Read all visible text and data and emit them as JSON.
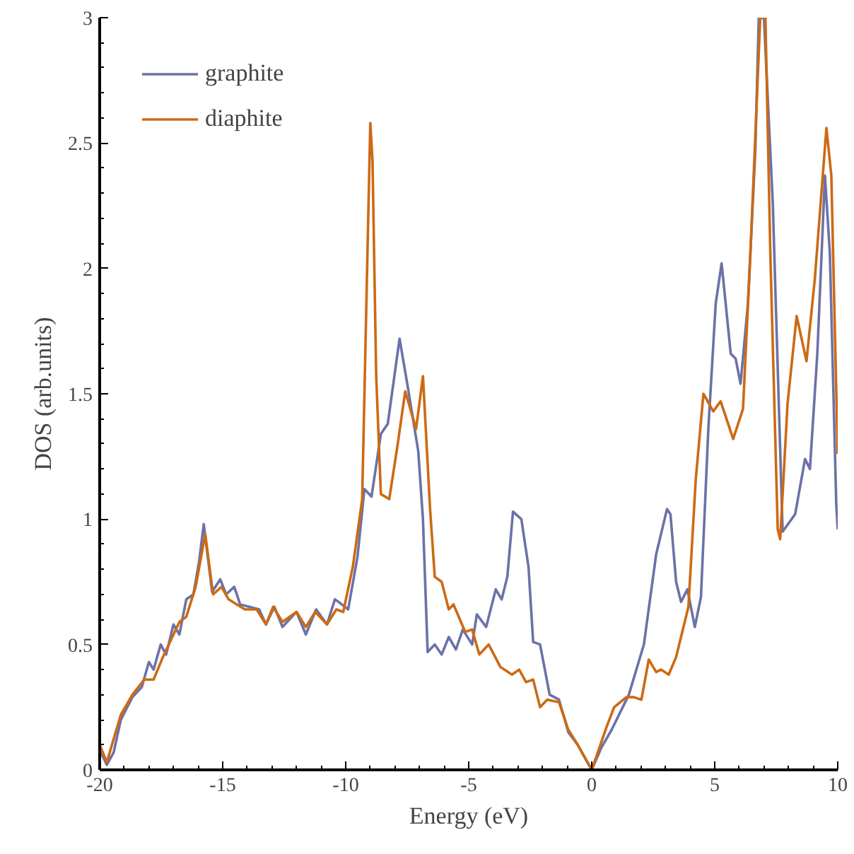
{
  "chart_data": {
    "type": "line",
    "xlabel": "Energy (eV)",
    "ylabel": "DOS (arb.units)",
    "xlim": [
      -20,
      10
    ],
    "ylim": [
      0,
      3
    ],
    "xticks": [
      -20,
      -15,
      -10,
      -5,
      0,
      5,
      10
    ],
    "yticks": [
      0,
      0.5,
      1,
      1.5,
      2,
      2.5,
      3
    ],
    "grid": false,
    "legend": "top left",
    "line_style": "solid",
    "series": [
      {
        "name": "graphite",
        "color": "#6b72a8",
        "x": [
          -20,
          -19.71,
          -19.43,
          -19.14,
          -18.67,
          -18.29,
          -18.0,
          -17.81,
          -17.52,
          -17.3,
          -17.0,
          -16.76,
          -16.48,
          -16.19,
          -15.96,
          -15.77,
          -15.43,
          -15.1,
          -14.86,
          -14.53,
          -14.29,
          -13.9,
          -13.52,
          -13.24,
          -12.9,
          -12.57,
          -12.0,
          -11.62,
          -11.2,
          -10.76,
          -10.44,
          -10.29,
          -9.9,
          -9.52,
          -9.24,
          -8.95,
          -8.57,
          -8.29,
          -7.81,
          -7.43,
          -7.05,
          -6.86,
          -6.67,
          -6.38,
          -6.1,
          -5.81,
          -5.52,
          -5.24,
          -4.86,
          -4.67,
          -4.29,
          -3.9,
          -3.66,
          -3.43,
          -3.2,
          -2.86,
          -2.57,
          -2.38,
          -2.1,
          -1.71,
          -1.33,
          -0.95,
          -0.57,
          0,
          0.4,
          0.81,
          1.51,
          2.12,
          2.62,
          3.06,
          3.2,
          3.43,
          3.63,
          3.89,
          4.19,
          4.44,
          4.74,
          5.04,
          5.28,
          5.65,
          5.85,
          6.05,
          6.35,
          6.65,
          6.79,
          7.0,
          7.36,
          7.76,
          8.27,
          8.67,
          8.87,
          9.17,
          9.48,
          9.68,
          9.94,
          10
        ],
        "values": [
          0.08,
          0.02,
          0.07,
          0.2,
          0.29,
          0.33,
          0.43,
          0.4,
          0.5,
          0.46,
          0.58,
          0.54,
          0.68,
          0.7,
          0.83,
          0.98,
          0.71,
          0.76,
          0.7,
          0.73,
          0.66,
          0.65,
          0.64,
          0.58,
          0.65,
          0.57,
          0.63,
          0.54,
          0.64,
          0.58,
          0.68,
          0.67,
          0.64,
          0.85,
          1.12,
          1.09,
          1.34,
          1.38,
          1.72,
          1.5,
          1.27,
          1.0,
          0.47,
          0.5,
          0.46,
          0.53,
          0.48,
          0.56,
          0.5,
          0.62,
          0.57,
          0.72,
          0.68,
          0.77,
          1.03,
          1.0,
          0.81,
          0.51,
          0.5,
          0.3,
          0.28,
          0.15,
          0.1,
          0.0,
          0.09,
          0.16,
          0.3,
          0.5,
          0.86,
          1.04,
          1.02,
          0.75,
          0.67,
          0.72,
          0.57,
          0.69,
          1.36,
          1.86,
          2.02,
          1.66,
          1.64,
          1.54,
          1.86,
          2.47,
          3.0,
          3.0,
          2.26,
          0.95,
          1.02,
          1.24,
          1.2,
          1.66,
          2.37,
          2.06,
          1.06,
          0.96
        ]
      },
      {
        "name": "diaphite",
        "color": "#cc6a14",
        "x": [
          -20,
          -19.71,
          -19.14,
          -18.67,
          -18.19,
          -17.81,
          -17.43,
          -16.76,
          -16.48,
          -16.1,
          -15.71,
          -15.39,
          -15.05,
          -14.76,
          -14.1,
          -13.62,
          -13.24,
          -12.95,
          -12.57,
          -12.0,
          -11.62,
          -11.24,
          -10.76,
          -10.38,
          -10.1,
          -9.71,
          -9.33,
          -9.14,
          -9.0,
          -8.91,
          -8.76,
          -8.57,
          -8.23,
          -7.9,
          -7.58,
          -7.14,
          -6.86,
          -6.57,
          -6.38,
          -6.1,
          -5.81,
          -5.62,
          -5.14,
          -4.86,
          -4.57,
          -4.19,
          -3.71,
          -3.24,
          -2.95,
          -2.67,
          -2.38,
          -2.1,
          -1.81,
          -1.33,
          -0.95,
          -0.57,
          0,
          0.6,
          0.91,
          1.41,
          1.71,
          2.02,
          2.32,
          2.62,
          2.82,
          3.13,
          3.43,
          3.93,
          4.23,
          4.54,
          4.94,
          5.24,
          5.75,
          6.15,
          6.45,
          6.85,
          7.06,
          7.26,
          7.56,
          7.66,
          7.96,
          8.33,
          8.73,
          9.07,
          9.54,
          9.74,
          9.98,
          10
        ],
        "values": [
          0.1,
          0.03,
          0.22,
          0.3,
          0.36,
          0.36,
          0.45,
          0.59,
          0.61,
          0.73,
          0.94,
          0.7,
          0.73,
          0.68,
          0.64,
          0.64,
          0.58,
          0.65,
          0.59,
          0.63,
          0.57,
          0.63,
          0.58,
          0.64,
          0.63,
          0.81,
          1.08,
          1.95,
          2.58,
          2.43,
          1.57,
          1.1,
          1.08,
          1.29,
          1.51,
          1.36,
          1.57,
          1.04,
          0.77,
          0.75,
          0.64,
          0.66,
          0.55,
          0.56,
          0.46,
          0.5,
          0.41,
          0.38,
          0.4,
          0.35,
          0.36,
          0.25,
          0.28,
          0.27,
          0.16,
          0.1,
          0.0,
          0.17,
          0.25,
          0.29,
          0.29,
          0.28,
          0.44,
          0.39,
          0.4,
          0.38,
          0.45,
          0.65,
          1.16,
          1.5,
          1.43,
          1.47,
          1.32,
          1.44,
          2.06,
          3.0,
          3.0,
          2.06,
          0.96,
          0.92,
          1.46,
          1.81,
          1.63,
          1.96,
          2.56,
          2.37,
          1.34,
          1.26
        ]
      }
    ]
  }
}
